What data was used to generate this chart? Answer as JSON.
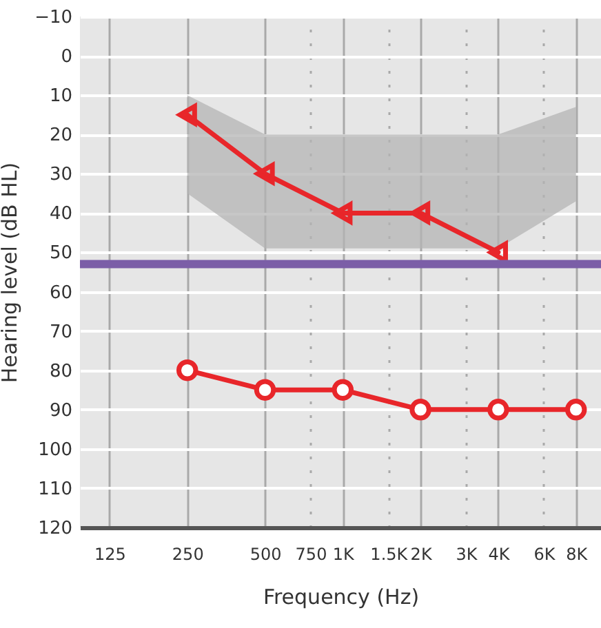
{
  "chart_data": {
    "type": "line",
    "xlabel": "Frequency (Hz)",
    "ylabel": "Hearing level (dB HL)",
    "log": "x",
    "xlim": [
      96,
      10000
    ],
    "ylim": [
      120,
      -10
    ],
    "xticks": [
      {
        "value": 125,
        "label": "125"
      },
      {
        "value": 250,
        "label": "250"
      },
      {
        "value": 500,
        "label": "500"
      },
      {
        "value": 750,
        "label": "750"
      },
      {
        "value": 1000,
        "label": "1K"
      },
      {
        "value": 1500,
        "label": "1.5K"
      },
      {
        "value": 2000,
        "label": "2K"
      },
      {
        "value": 3000,
        "label": "3K"
      },
      {
        "value": 4000,
        "label": "4K"
      },
      {
        "value": 6000,
        "label": "6K"
      },
      {
        "value": 8000,
        "label": "8K"
      }
    ],
    "yticks": [
      -10,
      0,
      10,
      20,
      30,
      40,
      50,
      60,
      70,
      80,
      90,
      100,
      110,
      120
    ],
    "grid": true,
    "line_style": "solid",
    "series": [
      {
        "color": "#b4b4b4",
        "x": [
          250,
          500,
          4000,
          8000
        ],
        "values": [
          null,
          null,
          null,
          null
        ],
        "lower": [
          35,
          49,
          49,
          37
        ],
        "upper": [
          10,
          20,
          20,
          13
        ]
      },
      {
        "color": "#e8262a",
        "marker": "triangle",
        "x": [
          250,
          500,
          1000,
          2000,
          4000
        ],
        "values": [
          15,
          30,
          40,
          40,
          50
        ]
      },
      {
        "color": "#e8262a",
        "marker": "circle",
        "x": [
          250,
          500,
          1000,
          2000,
          4000,
          8000
        ],
        "values": [
          80,
          85,
          85,
          90,
          90,
          90
        ]
      }
    ],
    "ref_lines": [
      {
        "axis": "y",
        "value": 53,
        "color": "#7b5ea7",
        "line_style": "solid"
      }
    ]
  }
}
